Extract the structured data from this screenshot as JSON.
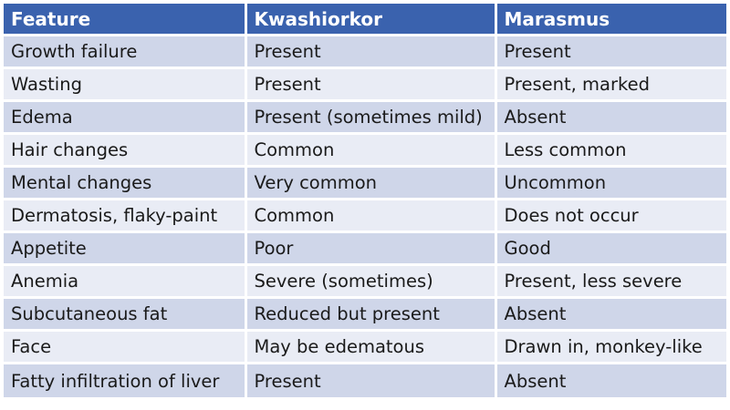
{
  "table": {
    "headers": [
      "Feature",
      "Kwashiorkor",
      "Marasmus"
    ],
    "rows": [
      [
        "Growth failure",
        "Present",
        "Present"
      ],
      [
        "Wasting",
        "Present",
        "Present, marked"
      ],
      [
        "Edema",
        "Present (sometimes mild)",
        "Absent"
      ],
      [
        "Hair changes",
        "Common",
        "Less common"
      ],
      [
        "Mental changes",
        "Very common",
        "Uncommon"
      ],
      [
        "Dermatosis, flaky-paint",
        "Common",
        "Does not occur"
      ],
      [
        "Appetite",
        "Poor",
        "Good"
      ],
      [
        "Anemia",
        "Severe (sometimes)",
        "Present, less severe"
      ],
      [
        "Subcutaneous fat",
        "Reduced but present",
        "Absent"
      ],
      [
        "Face",
        "May be edematous",
        "Drawn in, monkey-like"
      ],
      [
        "Fatty infiltration of liver",
        "Present",
        "Absent"
      ]
    ]
  },
  "colors": {
    "header_bg": "#3a62ae",
    "row_band_1": "#cfd6e9",
    "row_band_2": "#e9ecf5"
  }
}
